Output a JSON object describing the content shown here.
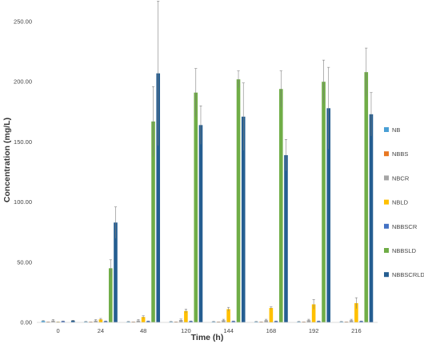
{
  "chart_data": {
    "type": "bar",
    "title": "",
    "xlabel": "Time (h)",
    "ylabel": "Concentration (mg/L)",
    "ylim": [
      0,
      250
    ],
    "yticks": [
      "0.00",
      "50.00",
      "100.00",
      "150.00",
      "200.00",
      "250.00"
    ],
    "categories": [
      "0",
      "24",
      "48",
      "120",
      "144",
      "168",
      "192",
      "216"
    ],
    "grid": false,
    "legend_position": "right",
    "error_bars": true,
    "series": [
      {
        "name": "NB",
        "color": "#4A9FD5",
        "values": [
          1.2,
          0.6,
          0.6,
          0.6,
          0.6,
          0.6,
          0.6,
          0.6
        ],
        "errors": [
          0.3,
          0.2,
          0.2,
          0.2,
          0.2,
          0.2,
          0.2,
          0.2
        ]
      },
      {
        "name": "NBBS",
        "color": "#E87722",
        "values": [
          0.3,
          0.3,
          0.3,
          0.3,
          0.3,
          0.3,
          0.3,
          0.3
        ],
        "errors": [
          0.1,
          0.1,
          0.1,
          0.1,
          0.1,
          0.1,
          0.1,
          0.1
        ]
      },
      {
        "name": "NBCR",
        "color": "#A5A5A5",
        "values": [
          1.5,
          1.5,
          1.5,
          2.0,
          1.8,
          1.8,
          1.8,
          1.8
        ],
        "errors": [
          0.8,
          0.8,
          0.8,
          0.8,
          0.8,
          0.8,
          0.8,
          0.8
        ]
      },
      {
        "name": "NBLD",
        "color": "#FFC000",
        "values": [
          0.2,
          2.5,
          4.5,
          9.5,
          11.0,
          12.0,
          15.0,
          16.0
        ],
        "errors": [
          0.2,
          0.8,
          1.0,
          1.5,
          1.5,
          1.0,
          4.0,
          4.5
        ]
      },
      {
        "name": "NBBSCR",
        "color": "#4472C4",
        "values": [
          1.0,
          1.0,
          1.0,
          1.0,
          1.0,
          1.0,
          1.0,
          1.0
        ],
        "errors": [
          0.2,
          0.2,
          0.2,
          0.2,
          0.2,
          0.2,
          0.2,
          0.2
        ]
      },
      {
        "name": "NBBSLD",
        "color": "#70AD47",
        "values": [
          0.0,
          45.0,
          167.0,
          191.0,
          202.0,
          194.0,
          200.0,
          208.0
        ],
        "errors": [
          0.0,
          7.0,
          29.0,
          20.0,
          7.0,
          15.0,
          18.0,
          20.0
        ]
      },
      {
        "name": "NBBSCRLD",
        "color": "#255E91",
        "values": [
          1.5,
          83.0,
          207.0,
          164.0,
          171.0,
          139.0,
          178.0,
          173.0
        ],
        "errors": [
          0.3,
          13.0,
          60.0,
          16.0,
          28.0,
          13.0,
          34.0,
          18.0
        ]
      }
    ]
  }
}
